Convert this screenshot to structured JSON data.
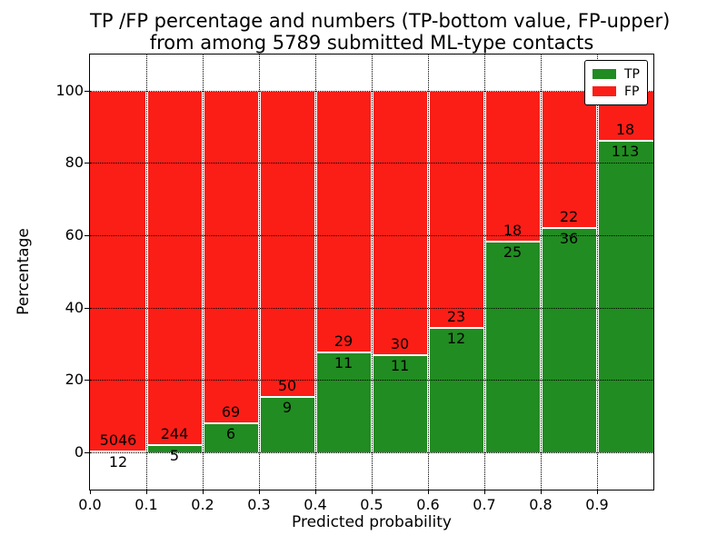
{
  "title": {
    "line1": "TP /FP percentage and numbers (TP-bottom value, FP-upper)",
    "line2": "from among 5789 submitted ML-type contacts"
  },
  "axes": {
    "xlabel": "Predicted probability",
    "ylabel": "Percentage",
    "xtick_labels": [
      "0.0",
      "0.1",
      "0.2",
      "0.3",
      "0.4",
      "0.5",
      "0.6",
      "0.7",
      "0.8",
      "0.9"
    ],
    "ytick_labels": [
      "0",
      "20",
      "40",
      "60",
      "80",
      "100"
    ],
    "ytick_values": [
      0,
      20,
      40,
      60,
      80,
      100
    ]
  },
  "colors": {
    "tp_green": "#218c21",
    "fp_red": "#fb1e17",
    "grid": "#000000",
    "text": "#000000",
    "background": "#ffffff"
  },
  "chart_data": {
    "type": "bar",
    "stacked": true,
    "note": "Each bin bar is normalized to 100%; green TP share at bottom, red FP share on top. Labels show raw counts (TP below boundary, FP above boundary).",
    "title": "TP /FP percentage and numbers (TP-bottom value, FP-upper) from among 5789 submitted ML-type contacts",
    "xlabel": "Predicted probability",
    "ylabel": "Percentage",
    "total_contacts": 5789,
    "bin_edges": [
      0.0,
      0.1,
      0.2,
      0.3,
      0.4,
      0.5,
      0.6,
      0.7,
      0.8,
      0.9,
      1.0
    ],
    "categories": [
      "0.0",
      "0.1",
      "0.2",
      "0.3",
      "0.4",
      "0.5",
      "0.6",
      "0.7",
      "0.8",
      "0.9"
    ],
    "series": [
      {
        "name": "TP",
        "color": "#218c21",
        "counts": [
          12,
          5,
          6,
          9,
          11,
          11,
          12,
          25,
          36,
          113
        ]
      },
      {
        "name": "FP",
        "color": "#fb1e17",
        "counts": [
          5046,
          244,
          69,
          50,
          29,
          30,
          23,
          18,
          22,
          18
        ]
      }
    ],
    "tp_percent": [
      0.24,
      2.01,
      8.0,
      15.25,
      27.5,
      26.83,
      34.29,
      58.14,
      62.07,
      86.26
    ],
    "ylim": [
      -10.3,
      110
    ],
    "xlim": [
      0.0,
      1.0
    ],
    "grid": "dotted",
    "legend_position": "upper-right"
  }
}
